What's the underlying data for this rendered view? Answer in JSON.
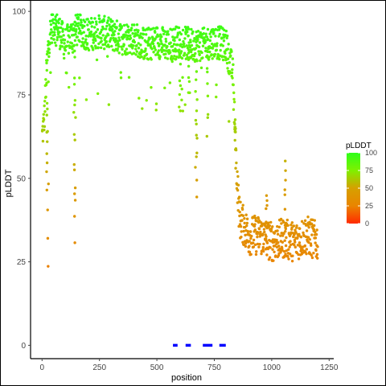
{
  "chart_data": {
    "type": "scatter",
    "title": "",
    "xlabel": "position",
    "ylabel": "pLDDT",
    "xlim": [
      -50,
      1270
    ],
    "ylim": [
      -4,
      101
    ],
    "xticks": [
      0,
      250,
      500,
      750,
      1000,
      1250
    ],
    "yticks": [
      0,
      25,
      50,
      75,
      100
    ],
    "grid": false,
    "legend": {
      "title": "pLDDT",
      "placement": "right",
      "ticks": [
        0,
        25,
        50,
        75,
        100
      ],
      "colors": [
        "#ff2a00",
        "#e98500",
        "#d6a000",
        "#7ff000",
        "#2eff1a"
      ]
    },
    "color_by": "pLDDT",
    "point_color_low": "#ff2a00",
    "point_color_high": "#2eff1a",
    "segments_color": "#0000ff",
    "segments": [
      {
        "x_start": 570,
        "x_end": 590,
        "y": 0
      },
      {
        "x_start": 625,
        "x_end": 648,
        "y": 0
      },
      {
        "x_start": 700,
        "x_end": 742,
        "y": 0
      },
      {
        "x_start": 772,
        "x_end": 800,
        "y": 0
      }
    ],
    "profile": [
      {
        "x": 0,
        "y": 62
      },
      {
        "x": 10,
        "y": 68
      },
      {
        "x": 20,
        "y": 82
      },
      {
        "x": 30,
        "y": 92
      },
      {
        "x": 45,
        "y": 96
      },
      {
        "x": 70,
        "y": 95
      },
      {
        "x": 100,
        "y": 90
      },
      {
        "x": 130,
        "y": 93
      },
      {
        "x": 160,
        "y": 95
      },
      {
        "x": 200,
        "y": 93
      },
      {
        "x": 250,
        "y": 94
      },
      {
        "x": 300,
        "y": 93
      },
      {
        "x": 350,
        "y": 92
      },
      {
        "x": 400,
        "y": 92
      },
      {
        "x": 450,
        "y": 90
      },
      {
        "x": 500,
        "y": 91
      },
      {
        "x": 550,
        "y": 90
      },
      {
        "x": 600,
        "y": 91
      },
      {
        "x": 650,
        "y": 90
      },
      {
        "x": 700,
        "y": 90
      },
      {
        "x": 750,
        "y": 91
      },
      {
        "x": 800,
        "y": 90
      },
      {
        "x": 830,
        "y": 82
      },
      {
        "x": 845,
        "y": 55
      },
      {
        "x": 860,
        "y": 38
      },
      {
        "x": 900,
        "y": 33
      },
      {
        "x": 950,
        "y": 33
      },
      {
        "x": 1000,
        "y": 31
      },
      {
        "x": 1050,
        "y": 32
      },
      {
        "x": 1100,
        "y": 31
      },
      {
        "x": 1150,
        "y": 33
      },
      {
        "x": 1200,
        "y": 31
      }
    ],
    "dips": [
      {
        "x": 25,
        "y": 25
      },
      {
        "x": 20,
        "y": 48
      },
      {
        "x": 140,
        "y": 30
      },
      {
        "x": 143,
        "y": 42
      },
      {
        "x": 600,
        "y": 70
      },
      {
        "x": 640,
        "y": 75
      },
      {
        "x": 670,
        "y": 53
      },
      {
        "x": 673,
        "y": 45
      },
      {
        "x": 720,
        "y": 64
      },
      {
        "x": 840,
        "y": 65
      },
      {
        "x": 1060,
        "y": 56
      },
      {
        "x": 978,
        "y": 44
      }
    ]
  }
}
